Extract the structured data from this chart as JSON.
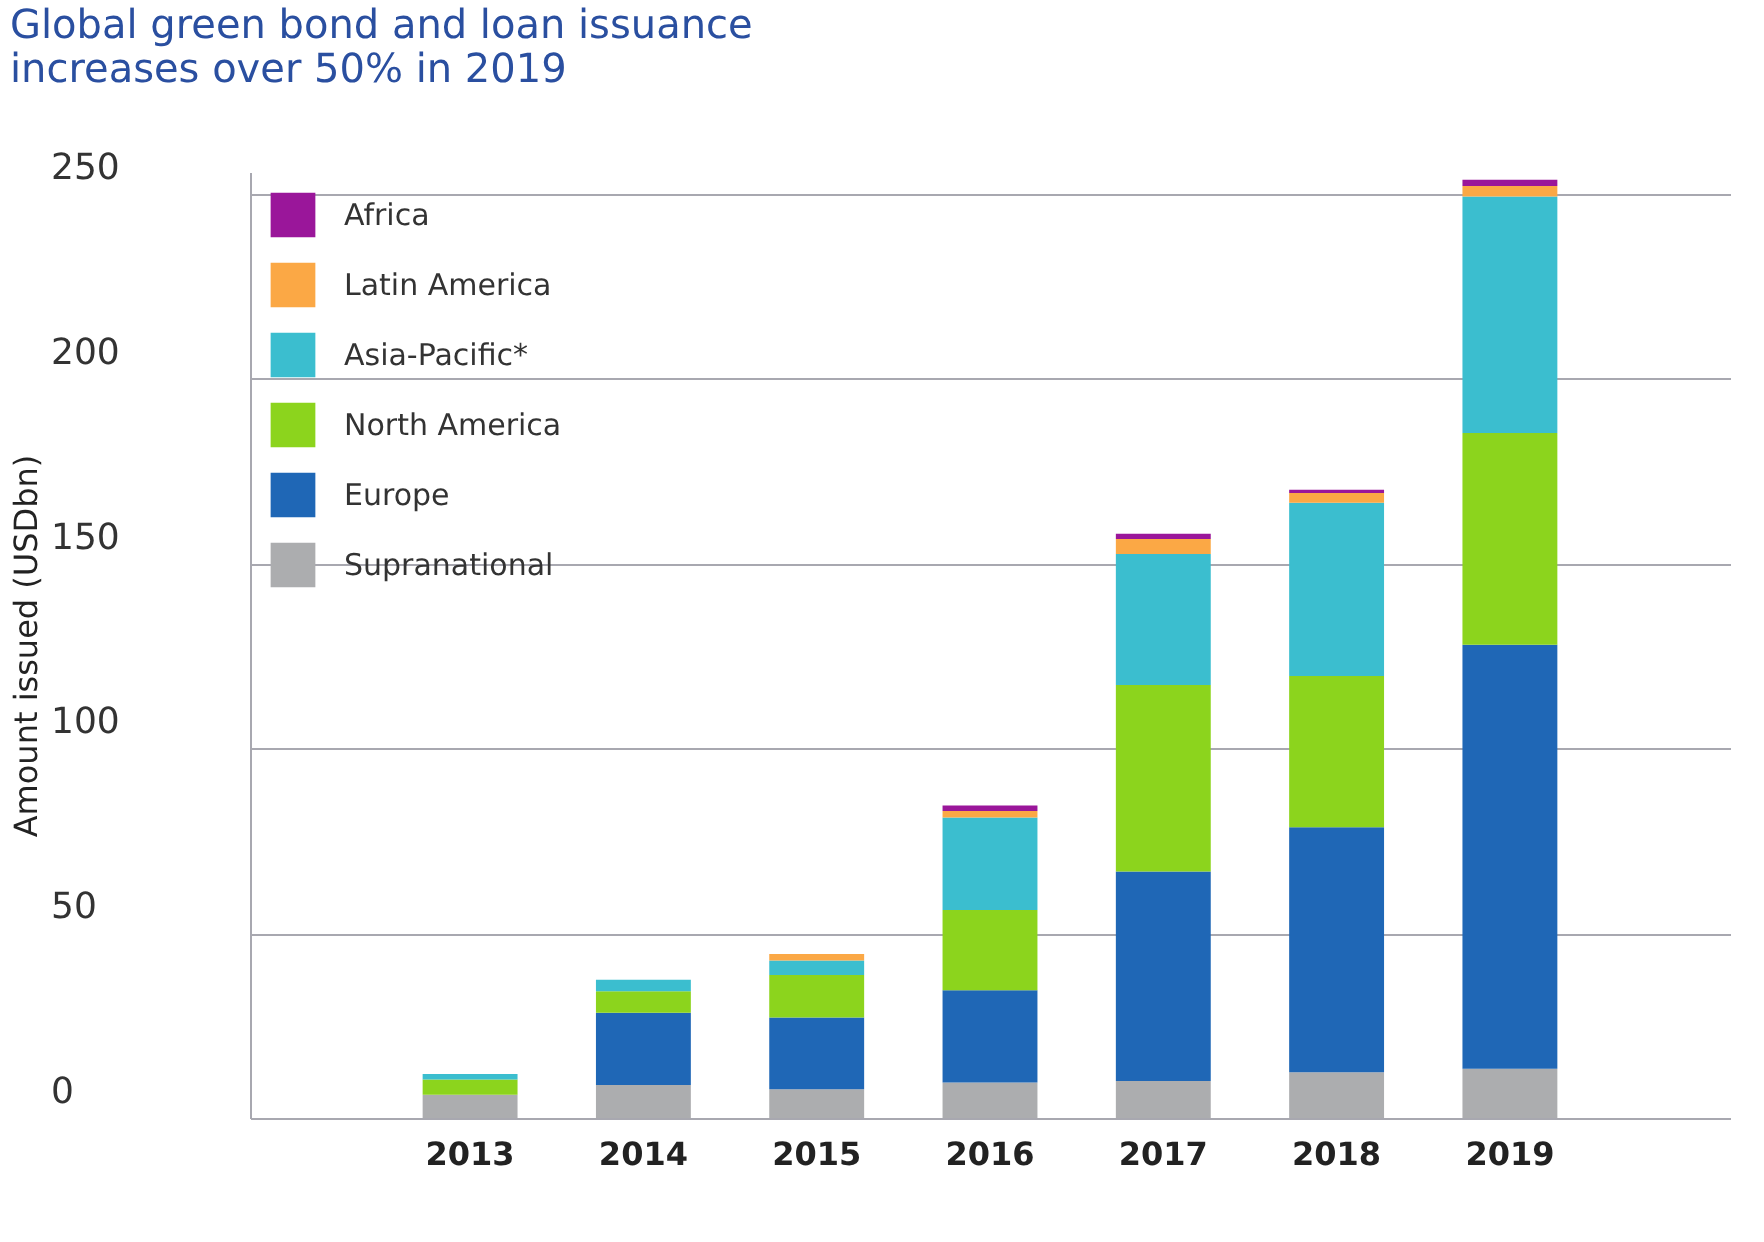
{
  "chart_data": {
    "type": "bar",
    "title": [
      "Global green bond and loan issuance",
      "increases over 50% in 2019"
    ],
    "ylabel": "Amount issued (USDbn)",
    "categories": [
      "2013",
      "2014",
      "2015",
      "2016",
      "2017",
      "2018",
      "2019"
    ],
    "stacked": true,
    "series": [
      {
        "name": "Supranational",
        "color": "#acadaf",
        "values": [
          6.3,
          8.9,
          7.8,
          9.6,
          10,
          12.4,
          13.3
        ]
      },
      {
        "name": "Europe",
        "color": "#1f67b6",
        "values": [
          0,
          19.6,
          19.4,
          25,
          56.7,
          66.3,
          114.8
        ]
      },
      {
        "name": "North America",
        "color": "#8cd41d",
        "values": [
          4.1,
          5.8,
          11.5,
          21.7,
          50.5,
          40.9,
          57.3
        ]
      },
      {
        "name": "Asia-Pacific*",
        "color": "#3bbecf",
        "values": [
          1.5,
          3.1,
          3.9,
          25,
          35.4,
          46.9,
          64
        ]
      },
      {
        "name": "Latin America",
        "color": "#fba845",
        "values": [
          0,
          0,
          1.8,
          1.8,
          4.1,
          2.6,
          2.8
        ]
      },
      {
        "name": "Africa",
        "color": "#9a169a",
        "values": [
          0,
          0,
          0,
          1.5,
          1.4,
          0.9,
          1.7
        ]
      }
    ],
    "ylim": [
      0,
      256
    ],
    "yticks": [
      0,
      50,
      100,
      150,
      200,
      250
    ],
    "grid": "y",
    "legend": "top left"
  }
}
